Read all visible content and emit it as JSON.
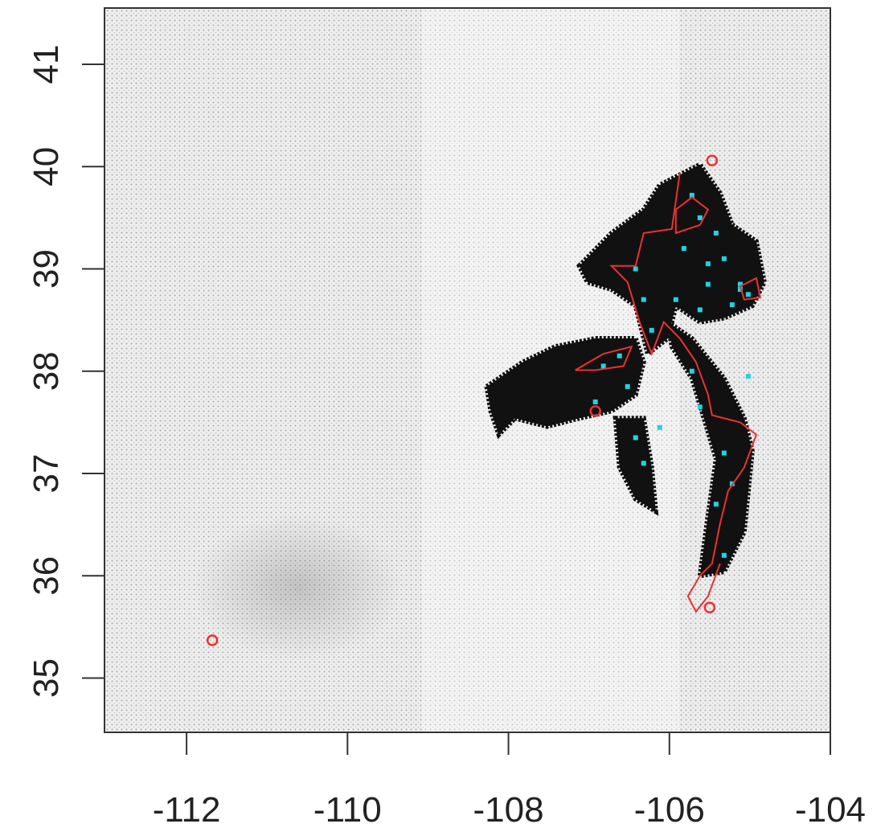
{
  "chart_data": {
    "type": "scatter",
    "xlim": [
      -113.02,
      -104
    ],
    "ylim": [
      34.47,
      41.55
    ],
    "xticks": [
      -112,
      -110,
      -108,
      -106,
      -104
    ],
    "yticks": [
      35,
      36,
      37,
      38,
      39,
      40,
      41
    ],
    "series": [
      {
        "kind": "polygon",
        "color": "#111111",
        "x": [
          -107.12,
          -106.72,
          -106.32,
          -106.12,
          -105.62,
          -105.37,
          -105.22,
          -104.92,
          -104.82,
          -104.97,
          -105.32,
          -105.62,
          -105.92,
          -106.02,
          -106.27,
          -106.42,
          -106.72,
          -107.02
        ],
        "y": [
          39.03,
          39.35,
          39.58,
          39.82,
          40.02,
          39.74,
          39.43,
          39.27,
          38.87,
          38.64,
          38.52,
          38.48,
          38.64,
          38.32,
          38.17,
          38.64,
          38.8,
          38.87
        ]
      },
      {
        "kind": "polygon",
        "color": "#111111",
        "x": [
          -108.27,
          -107.82,
          -107.42,
          -106.92,
          -106.42,
          -106.32,
          -106.42,
          -106.72,
          -107.12,
          -107.52,
          -107.92,
          -108.12,
          -108.22
        ],
        "y": [
          37.85,
          38.09,
          38.24,
          38.32,
          38.32,
          38.09,
          37.77,
          37.61,
          37.54,
          37.46,
          37.54,
          37.38,
          37.61
        ]
      },
      {
        "kind": "polygon",
        "color": "#111111",
        "x": [
          -106.67,
          -106.32,
          -106.22,
          -106.17,
          -106.42,
          -106.62
        ],
        "y": [
          37.54,
          37.54,
          37.06,
          36.63,
          36.75,
          37.06
        ]
      },
      {
        "kind": "polygon",
        "color": "#111111",
        "x": [
          -106.02,
          -105.72,
          -105.32,
          -105.07,
          -104.97,
          -105.07,
          -105.32,
          -105.62,
          -105.52,
          -105.42,
          -105.57,
          -105.72,
          -105.97
        ],
        "y": [
          38.48,
          38.32,
          37.93,
          37.54,
          37.22,
          36.43,
          36.04,
          36.0,
          36.59,
          37.14,
          37.54,
          37.93,
          38.24
        ]
      },
      {
        "kind": "points",
        "color": "#22d3e0",
        "x": [
          -105.72,
          -105.62,
          -105.42,
          -105.82,
          -105.52,
          -105.32,
          -105.12,
          -105.02,
          -106.42,
          -106.32,
          -106.22,
          -105.92,
          -105.62,
          -105.52,
          -105.22,
          -105.12,
          -106.82,
          -106.62,
          -106.52,
          -106.92,
          -106.42,
          -106.32,
          -105.32,
          -105.22,
          -105.42,
          -105.32,
          -105.02,
          -105.72,
          -105.62,
          -106.12
        ],
        "y": [
          39.72,
          39.5,
          39.35,
          39.2,
          39.05,
          39.1,
          38.85,
          38.75,
          39.0,
          38.7,
          38.4,
          38.7,
          38.6,
          38.85,
          38.65,
          38.8,
          38.05,
          38.15,
          37.85,
          37.7,
          37.35,
          37.1,
          37.2,
          36.9,
          36.7,
          36.2,
          37.95,
          38.0,
          37.65,
          37.45
        ]
      },
      {
        "kind": "line",
        "color": "#ee3030",
        "x": [
          -105.87,
          -105.97,
          -106.32,
          -106.42,
          -106.72,
          -106.52,
          -106.37,
          -106.22,
          -106.07,
          -105.87,
          -105.67,
          -105.52,
          -105.47,
          -105.12,
          -104.92,
          -105.07,
          -105.27,
          -105.37,
          -105.47,
          -105.62,
          -105.77,
          -105.67,
          -105.52,
          -105.37
        ],
        "y": [
          39.94,
          39.39,
          39.35,
          39.03,
          39.03,
          38.87,
          38.48,
          38.17,
          38.48,
          38.32,
          38.09,
          37.77,
          37.57,
          37.5,
          37.38,
          37.06,
          36.83,
          36.51,
          36.12,
          36.0,
          35.8,
          35.65,
          35.8,
          36.12
        ]
      },
      {
        "kind": "line",
        "color": "#ee3030",
        "x": [
          -105.12,
          -104.92,
          -104.87,
          -105.07,
          -105.12
        ],
        "y": [
          38.83,
          38.91,
          38.72,
          38.7,
          38.83
        ]
      },
      {
        "kind": "line",
        "color": "#ee3030",
        "x": [
          -105.92,
          -105.72,
          -105.52,
          -105.62,
          -105.92,
          -105.92
        ],
        "y": [
          39.58,
          39.7,
          39.58,
          39.43,
          39.35,
          39.58
        ]
      },
      {
        "kind": "line",
        "color": "#ee3030",
        "x": [
          -107.17,
          -106.82,
          -106.47,
          -106.57,
          -106.92,
          -107.17
        ],
        "y": [
          38.01,
          38.17,
          38.24,
          38.05,
          38.01,
          38.01
        ]
      },
      {
        "kind": "rings",
        "color": "#ee3030",
        "x": [
          -105.47,
          -106.92,
          -105.5,
          -111.68
        ],
        "y": [
          40.06,
          37.61,
          35.69,
          35.37
        ]
      }
    ]
  }
}
